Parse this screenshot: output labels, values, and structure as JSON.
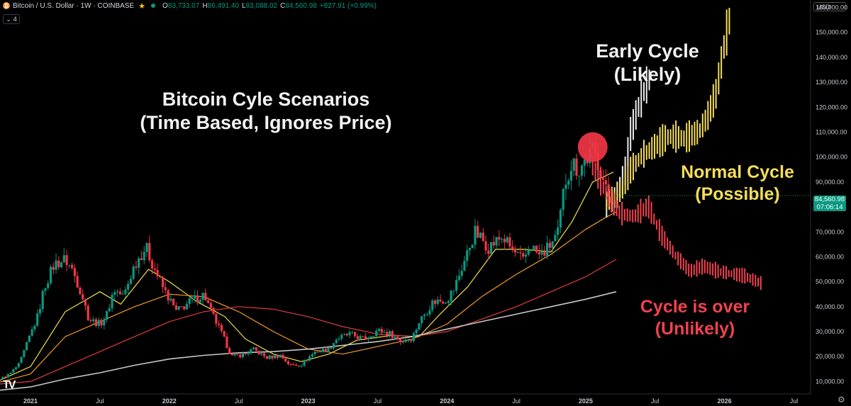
{
  "header": {
    "symbol_title": "Bitcoin / U.S. Dollar · 1W · COINBASE",
    "open_label": "O",
    "open": "83,733.07",
    "high_label": "H",
    "high": "86,491.40",
    "low_label": "L",
    "low": "83,088.02",
    "close_label": "C",
    "close": "84,560.98",
    "change": "+827.91 (+0.99%)",
    "indicator_count": "4",
    "currency": "USD"
  },
  "colors": {
    "up": "#089981",
    "down": "#f23645",
    "ema_yellow": "#f5e04a",
    "ema_orange": "#f59a23",
    "ema_red": "#e23b3b",
    "ema_gray": "#c8c8c8",
    "scenario_white": "#ececec",
    "scenario_yellow": "#f5dd5c",
    "scenario_red": "#f0424f",
    "marker": "#f23645"
  },
  "chart_data": {
    "type": "line",
    "instrument": "Bitcoin / U.S. Dollar",
    "interval": "1W",
    "x_axis_labels": [
      "2021",
      "Jul",
      "2022",
      "Jul",
      "2023",
      "Jul",
      "2024",
      "Jul",
      "2025",
      "Jul",
      "2026",
      "Jul"
    ],
    "x_axis_dates": [
      2021.0,
      2021.5,
      2022.0,
      2022.5,
      2023.0,
      2023.5,
      2024.0,
      2024.5,
      2025.0,
      2025.5,
      2026.0,
      2026.5
    ],
    "y_ticks": [
      10000,
      20000,
      30000,
      40000,
      50000,
      60000,
      70000,
      80000,
      90000,
      100000,
      110000,
      120000,
      130000,
      140000,
      150000,
      160000
    ],
    "y_tick_labels": [
      "10,000.00",
      "20,000.00",
      "30,000.00",
      "40,000.00",
      "50,000.00",
      "60,000.00",
      "70,000.00",
      "80,000.00",
      "90,000.00",
      "100,000.00",
      "110,000.00",
      "120,000.00",
      "130,000.00",
      "140,000.00",
      "150,000.00",
      "160,000.00"
    ],
    "ylim": [
      5000,
      163000
    ],
    "xlim": [
      2020.78,
      2026.62
    ],
    "last_price": "84,560.98",
    "countdown": "07:06:14",
    "price_path": [
      [
        2020.78,
        11000
      ],
      [
        2020.85,
        13000
      ],
      [
        2020.92,
        17000
      ],
      [
        2021.0,
        29000
      ],
      [
        2021.05,
        36000
      ],
      [
        2021.1,
        48000
      ],
      [
        2021.17,
        57000
      ],
      [
        2021.25,
        59000
      ],
      [
        2021.3,
        55000
      ],
      [
        2021.37,
        45000
      ],
      [
        2021.42,
        35000
      ],
      [
        2021.5,
        33000
      ],
      [
        2021.55,
        37000
      ],
      [
        2021.6,
        47000
      ],
      [
        2021.67,
        44000
      ],
      [
        2021.75,
        57000
      ],
      [
        2021.83,
        64000
      ],
      [
        2021.88,
        57000
      ],
      [
        2021.95,
        48000
      ],
      [
        2022.0,
        43000
      ],
      [
        2022.05,
        38000
      ],
      [
        2022.15,
        42000
      ],
      [
        2022.25,
        45000
      ],
      [
        2022.3,
        38000
      ],
      [
        2022.37,
        30000
      ],
      [
        2022.45,
        20000
      ],
      [
        2022.55,
        21000
      ],
      [
        2022.6,
        23000
      ],
      [
        2022.7,
        19500
      ],
      [
        2022.8,
        20500
      ],
      [
        2022.87,
        16500
      ],
      [
        2022.95,
        16800
      ],
      [
        2023.05,
        22000
      ],
      [
        2023.15,
        23000
      ],
      [
        2023.2,
        27000
      ],
      [
        2023.3,
        29000
      ],
      [
        2023.4,
        27000
      ],
      [
        2023.5,
        30500
      ],
      [
        2023.6,
        29000
      ],
      [
        2023.67,
        26000
      ],
      [
        2023.75,
        27500
      ],
      [
        2023.8,
        34000
      ],
      [
        2023.9,
        42000
      ],
      [
        2024.0,
        43000
      ],
      [
        2024.05,
        47000
      ],
      [
        2024.15,
        62000
      ],
      [
        2024.2,
        70000
      ],
      [
        2024.3,
        64000
      ],
      [
        2024.4,
        68000
      ],
      [
        2024.48,
        62000
      ],
      [
        2024.55,
        58000
      ],
      [
        2024.6,
        65000
      ],
      [
        2024.67,
        60000
      ],
      [
        2024.72,
        63000
      ],
      [
        2024.8,
        69000
      ],
      [
        2024.85,
        90000
      ],
      [
        2024.9,
        98000
      ],
      [
        2024.95,
        95000
      ],
      [
        2025.0,
        99000
      ],
      [
        2025.05,
        102000
      ],
      [
        2025.1,
        97000
      ],
      [
        2025.15,
        85000
      ],
      [
        2025.2,
        84000
      ],
      [
        2025.22,
        84561
      ]
    ],
    "series": [
      {
        "values": [
          [
            2020.78,
            10500
          ],
          [
            2021.0,
            16000
          ],
          [
            2021.25,
            38000
          ],
          [
            2021.5,
            46000
          ],
          [
            2021.65,
            41000
          ],
          [
            2021.85,
            55000
          ],
          [
            2022.0,
            50000
          ],
          [
            2022.2,
            42000
          ],
          [
            2022.4,
            36000
          ],
          [
            2022.55,
            27000
          ],
          [
            2022.75,
            21000
          ],
          [
            2022.95,
            18000
          ],
          [
            2023.15,
            21000
          ],
          [
            2023.35,
            26500
          ],
          [
            2023.6,
            28500
          ],
          [
            2023.8,
            28000
          ],
          [
            2023.95,
            37000
          ],
          [
            2024.15,
            48000
          ],
          [
            2024.35,
            63000
          ],
          [
            2024.55,
            63000
          ],
          [
            2024.75,
            62000
          ],
          [
            2024.9,
            74000
          ],
          [
            2025.05,
            90000
          ],
          [
            2025.2,
            94000
          ]
        ]
      },
      {
        "values": [
          [
            2020.78,
            9800
          ],
          [
            2021.0,
            13000
          ],
          [
            2021.25,
            28000
          ],
          [
            2021.5,
            34000
          ],
          [
            2021.75,
            40000
          ],
          [
            2022.0,
            45000
          ],
          [
            2022.25,
            44000
          ],
          [
            2022.5,
            38000
          ],
          [
            2022.75,
            30000
          ],
          [
            2023.0,
            23000
          ],
          [
            2023.25,
            21000
          ],
          [
            2023.5,
            24000
          ],
          [
            2023.75,
            27000
          ],
          [
            2024.0,
            33000
          ],
          [
            2024.25,
            44000
          ],
          [
            2024.5,
            53000
          ],
          [
            2024.75,
            61000
          ],
          [
            2025.0,
            71000
          ],
          [
            2025.15,
            76000
          ],
          [
            2025.22,
            78000
          ]
        ]
      },
      {
        "values": [
          [
            2020.78,
            9000
          ],
          [
            2021.0,
            10000
          ],
          [
            2021.25,
            16000
          ],
          [
            2021.5,
            22000
          ],
          [
            2021.75,
            28000
          ],
          [
            2022.0,
            34000
          ],
          [
            2022.25,
            38000
          ],
          [
            2022.5,
            40000
          ],
          [
            2022.75,
            39000
          ],
          [
            2023.0,
            36000
          ],
          [
            2023.25,
            32000
          ],
          [
            2023.5,
            29000
          ],
          [
            2023.75,
            28000
          ],
          [
            2024.0,
            30000
          ],
          [
            2024.25,
            35000
          ],
          [
            2024.5,
            40000
          ],
          [
            2024.75,
            46000
          ],
          [
            2025.0,
            52000
          ],
          [
            2025.22,
            59000
          ]
        ]
      },
      {
        "values": [
          [
            2020.78,
            6500
          ],
          [
            2021.0,
            7800
          ],
          [
            2021.25,
            11000
          ],
          [
            2021.5,
            13500
          ],
          [
            2021.75,
            16500
          ],
          [
            2022.0,
            19000
          ],
          [
            2022.25,
            20500
          ],
          [
            2022.5,
            21500
          ],
          [
            2022.75,
            22000
          ],
          [
            2023.0,
            23000
          ],
          [
            2023.25,
            24500
          ],
          [
            2023.5,
            26000
          ],
          [
            2023.75,
            28000
          ],
          [
            2024.0,
            31000
          ],
          [
            2024.25,
            34000
          ],
          [
            2024.5,
            37000
          ],
          [
            2024.75,
            40000
          ],
          [
            2025.0,
            43000
          ],
          [
            2025.22,
            46000
          ]
        ]
      }
    ],
    "scenarios": [
      {
        "label": "Early Cycle (Likely)",
        "values": [
          [
            2025.15,
            80000
          ],
          [
            2025.22,
            84000
          ],
          [
            2025.28,
            92000
          ],
          [
            2025.32,
            108000
          ],
          [
            2025.37,
            118000
          ],
          [
            2025.42,
            126000
          ],
          [
            2025.47,
            132000
          ]
        ]
      },
      {
        "label": "Normal Cycle (Possible)",
        "values": [
          [
            2025.15,
            82000
          ],
          [
            2025.25,
            85000
          ],
          [
            2025.32,
            94000
          ],
          [
            2025.4,
            100000
          ],
          [
            2025.5,
            104000
          ],
          [
            2025.6,
            108000
          ],
          [
            2025.72,
            107000
          ],
          [
            2025.82,
            110000
          ],
          [
            2025.88,
            116000
          ],
          [
            2025.94,
            125000
          ],
          [
            2026.0,
            145000
          ],
          [
            2026.05,
            158000
          ]
        ]
      },
      {
        "label": "Cycle is over (Unlikely)",
        "values": [
          [
            2025.05,
            96000
          ],
          [
            2025.15,
            85000
          ],
          [
            2025.25,
            77000
          ],
          [
            2025.35,
            76000
          ],
          [
            2025.45,
            80000
          ],
          [
            2025.55,
            68000
          ],
          [
            2025.65,
            60000
          ],
          [
            2025.75,
            54000
          ],
          [
            2025.85,
            56000
          ],
          [
            2025.95,
            54000
          ],
          [
            2026.05,
            53000
          ],
          [
            2026.15,
            52000
          ],
          [
            2026.27,
            49000
          ]
        ]
      }
    ],
    "marker": {
      "x": 2025.05,
      "y": 104000
    }
  },
  "annotations": {
    "title_line1": "Bitcoin Cyle Scenarios",
    "title_line2": "(Time Based, Ignores Price)",
    "early_line1": "Early Cycle",
    "early_line2": "(Likely)",
    "normal_line1": "Normal Cycle",
    "normal_line2": "(Possible)",
    "over_line1": "Cycle is over",
    "over_line2": "(Unlikely)"
  },
  "branding": {
    "logo_text": "TV"
  }
}
